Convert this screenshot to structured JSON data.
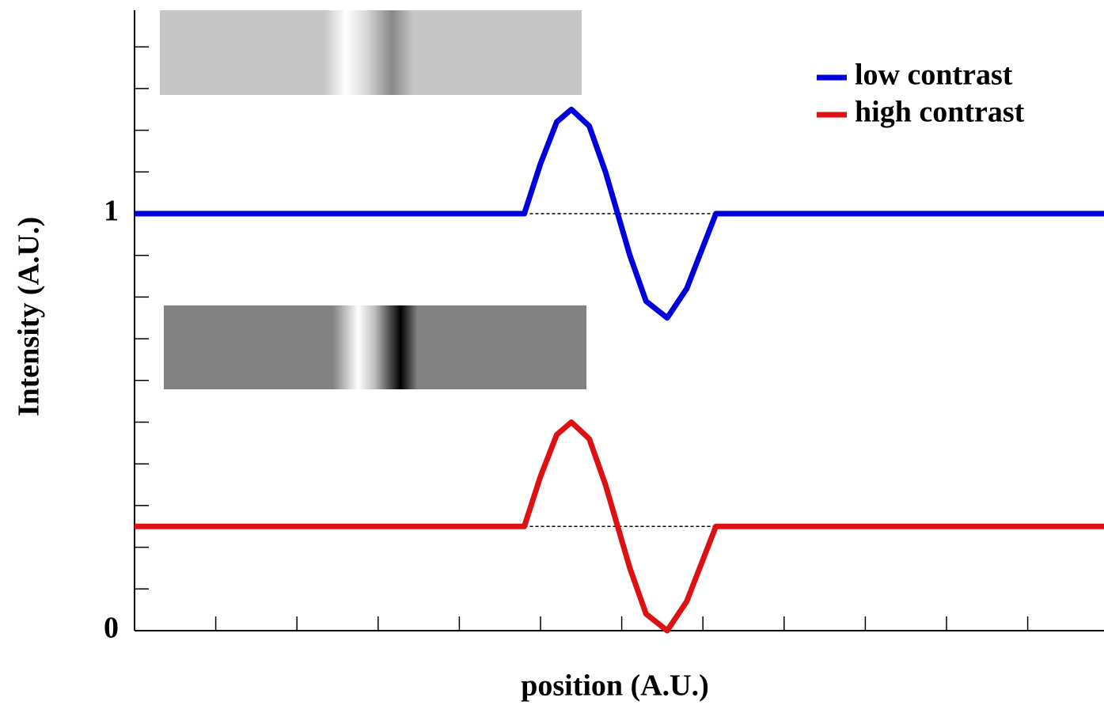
{
  "chart_data": {
    "type": "line",
    "x_label": "position (A.U.)",
    "y_label": "Intensity (A.U.)",
    "xlim": [
      0,
      12
    ],
    "ylim": [
      0,
      1.49
    ],
    "yticks": [
      0,
      1
    ],
    "yticks_minor": [
      0.1,
      0.2,
      0.3,
      0.4,
      0.5,
      0.6,
      0.7,
      0.8,
      0.9,
      1.1,
      1.2,
      1.3,
      1.4
    ],
    "xticks_minor": [
      1,
      2,
      3,
      4,
      5,
      6,
      7,
      8,
      9,
      10,
      11
    ],
    "baselines": [
      1,
      0.25
    ],
    "baseline_span": [
      4.8,
      7.16
    ],
    "legend": "upper right",
    "series": [
      {
        "name": "low contrast",
        "color": "#0000dd",
        "x": [
          0,
          4.8,
          5.0,
          5.2,
          5.38,
          5.6,
          5.8,
          5.95,
          6.1,
          6.3,
          6.56,
          6.8,
          7.0,
          7.16,
          12
        ],
        "values": [
          1,
          1,
          1.12,
          1.22,
          1.25,
          1.21,
          1.1,
          1.0,
          0.9,
          0.79,
          0.75,
          0.82,
          0.92,
          1,
          1
        ]
      },
      {
        "name": "high contrast",
        "color": "#dd1111",
        "x": [
          0,
          4.8,
          5.0,
          5.2,
          5.38,
          5.6,
          5.8,
          5.95,
          6.1,
          6.3,
          6.56,
          6.8,
          7.0,
          7.16,
          12
        ],
        "values": [
          0.25,
          0.25,
          0.37,
          0.47,
          0.5,
          0.46,
          0.35,
          0.25,
          0.15,
          0.04,
          0,
          0.07,
          0.17,
          0.25,
          0.25
        ]
      }
    ]
  }
}
